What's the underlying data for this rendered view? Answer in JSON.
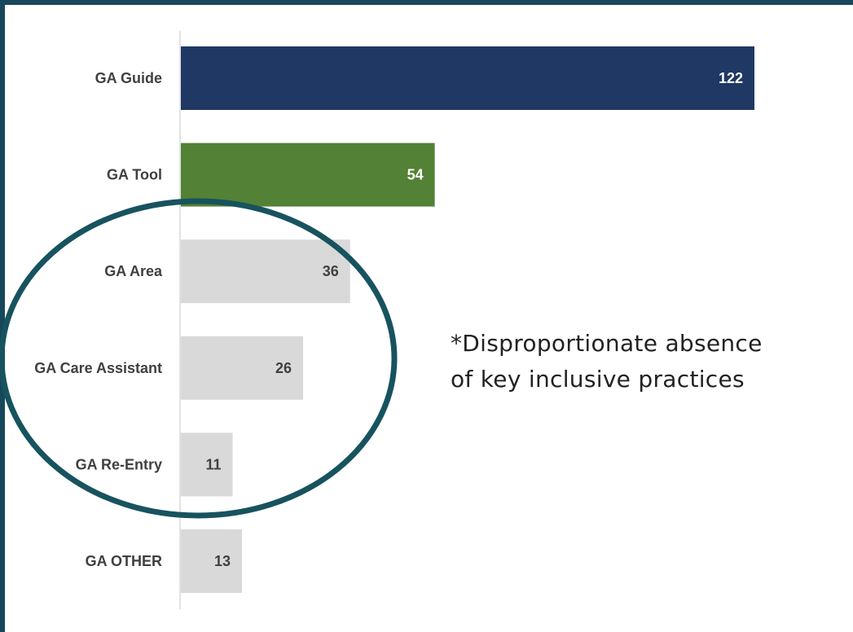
{
  "chart_data": {
    "type": "bar",
    "orientation": "horizontal",
    "categories": [
      "GA Guide",
      "GA Tool",
      "GA Area",
      "GA Care Assistant",
      "GA Re-Entry",
      "GA OTHER"
    ],
    "values": [
      122,
      54,
      36,
      26,
      11,
      13
    ],
    "bar_colors": [
      "#203864",
      "#538135",
      "#d9d9d9",
      "#d9d9d9",
      "#d9d9d9",
      "#d9d9d9"
    ],
    "label_colors": [
      "#ffffff",
      "#ffffff",
      "#404040",
      "#404040",
      "#404040",
      "#404040"
    ],
    "data_labels": [
      "122",
      "54",
      "36",
      "26",
      "11",
      "13"
    ],
    "xlim": [
      0,
      122
    ],
    "grid": false,
    "legend": "none",
    "highlight": {
      "shape": "ellipse",
      "color": "#17535e",
      "encloses": [
        "GA Area",
        "GA Care Assistant",
        "GA Re-Entry"
      ]
    },
    "annotation": {
      "lines": [
        "*Disproportionate absence",
        "of key inclusive practices"
      ]
    }
  },
  "frame_color": "#17475a"
}
